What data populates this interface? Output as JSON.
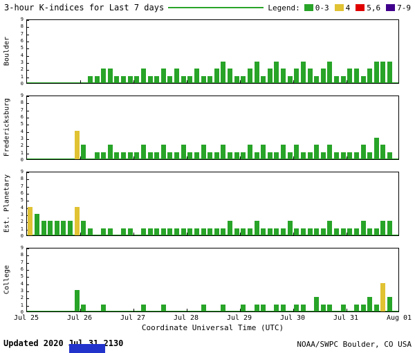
{
  "header": {
    "title": "3-hour K-indices for Last 7 days",
    "legend_label": "Legend:",
    "legend_items": [
      {
        "label": "0-3",
        "color_key": "green"
      },
      {
        "label": "4",
        "color_key": "yellow"
      },
      {
        "label": "5,6",
        "color_key": "red"
      },
      {
        "label": "7-9",
        "color_key": "purple"
      }
    ]
  },
  "y_axis": {
    "ticks": [
      "0",
      "1",
      "2",
      "3",
      "4",
      "5",
      "6",
      "7",
      "8",
      "9"
    ]
  },
  "x_axis": {
    "title": "Coordinate Universal Time (UTC)",
    "tick_labels": [
      "Jul 25",
      "Jul 26",
      "Jul 27",
      "Jul 28",
      "Jul 29",
      "Jul 30",
      "Jul 31",
      "Aug 01"
    ]
  },
  "footer": {
    "updated": "Updated 2020 Jul 31 2130",
    "source": "NOAA/SWPC Boulder, CO USA"
  },
  "chart_data": {
    "type": "bar",
    "title": "3-hour K-indices for Last 7 days",
    "xlabel": "Coordinate Universal Time (UTC)",
    "ylim": [
      0,
      9
    ],
    "slots_per_day": 8,
    "days": [
      "Jul 25",
      "Jul 26",
      "Jul 27",
      "Jul 28",
      "Jul 29",
      "Jul 30",
      "Jul 31"
    ],
    "colors": {
      "green": "#28a428",
      "yellow": "#e0c233",
      "red": "#e00000",
      "purple": "#40008c"
    },
    "color_scale": {
      "0-3": "green",
      "4": "yellow",
      "5-6": "red",
      "7-9": "purple"
    },
    "panels": [
      {
        "station": "Boulder",
        "values": [
          0,
          0,
          0,
          0,
          0,
          0,
          0,
          0,
          0,
          1,
          1,
          2,
          2,
          1,
          1,
          1,
          1,
          2,
          1,
          1,
          2,
          1,
          2,
          1,
          1,
          2,
          1,
          1,
          2,
          3,
          2,
          1,
          1,
          2,
          3,
          1,
          2,
          3,
          2,
          1,
          2,
          3,
          2,
          1,
          2,
          3,
          1,
          1,
          2,
          2,
          1,
          2,
          3,
          3,
          3,
          null
        ]
      },
      {
        "station": "Fredericksburg",
        "values": [
          0,
          0,
          0,
          0,
          0,
          0,
          0,
          4,
          2,
          0,
          1,
          1,
          2,
          1,
          1,
          1,
          1,
          2,
          1,
          1,
          2,
          1,
          1,
          2,
          1,
          1,
          2,
          1,
          1,
          2,
          1,
          1,
          1,
          2,
          1,
          2,
          1,
          1,
          2,
          1,
          2,
          1,
          1,
          2,
          1,
          2,
          1,
          1,
          1,
          1,
          2,
          1,
          3,
          2,
          1,
          null
        ]
      },
      {
        "station": "Est. Planetary",
        "values": [
          4,
          3,
          2,
          2,
          2,
          2,
          2,
          4,
          2,
          1,
          0,
          1,
          1,
          0,
          1,
          1,
          0,
          1,
          1,
          1,
          1,
          1,
          1,
          1,
          1,
          1,
          1,
          1,
          1,
          1,
          2,
          1,
          1,
          1,
          2,
          1,
          1,
          1,
          1,
          2,
          1,
          1,
          1,
          1,
          1,
          2,
          1,
          1,
          1,
          1,
          2,
          1,
          1,
          2,
          2,
          null
        ]
      },
      {
        "station": "College",
        "values": [
          0,
          0,
          0,
          0,
          0,
          0,
          0,
          3,
          1,
          0,
          0,
          1,
          0,
          0,
          0,
          0,
          0,
          1,
          0,
          0,
          1,
          0,
          0,
          0,
          0,
          0,
          1,
          0,
          0,
          1,
          0,
          0,
          1,
          0,
          1,
          1,
          0,
          1,
          1,
          0,
          1,
          1,
          0,
          2,
          1,
          1,
          0,
          1,
          0,
          1,
          1,
          2,
          1,
          4,
          2,
          null
        ]
      }
    ]
  }
}
